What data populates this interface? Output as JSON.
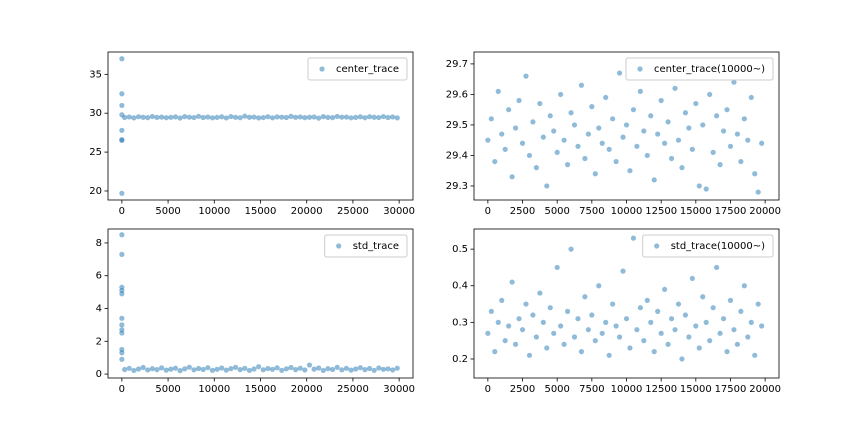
{
  "chart_data": [
    {
      "type": "scatter",
      "legend": "upper right",
      "x": [
        0,
        0,
        0,
        0,
        0,
        0,
        0,
        0,
        300,
        800,
        1300,
        1800,
        2300,
        2800,
        3300,
        3800,
        4300,
        4800,
        5300,
        5800,
        6300,
        6800,
        7300,
        7800,
        8300,
        8800,
        9300,
        9800,
        10300,
        10800,
        11300,
        11800,
        12300,
        12800,
        13300,
        13800,
        14300,
        14800,
        15300,
        15800,
        16300,
        16800,
        17300,
        17800,
        18300,
        18800,
        19300,
        19800,
        20300,
        20800,
        21300,
        21800,
        22300,
        22800,
        23300,
        23800,
        24300,
        24800,
        25300,
        25800,
        26300,
        26800,
        27300,
        27800,
        28300,
        28800,
        29300,
        29800
      ],
      "series": [
        {
          "name": "center_trace",
          "color": "#1f77b4",
          "values": [
            37.0,
            32.5,
            31.0,
            29.8,
            27.8,
            26.6,
            26.5,
            19.7,
            29.45,
            29.52,
            29.4,
            29.55,
            29.48,
            29.43,
            29.58,
            29.46,
            29.5,
            29.42,
            29.47,
            29.53,
            29.38,
            29.56,
            29.49,
            29.44,
            29.6,
            29.45,
            29.51,
            29.41,
            29.46,
            29.54,
            29.39,
            29.57,
            29.47,
            29.42,
            29.62,
            29.48,
            29.5,
            29.4,
            29.44,
            29.55,
            29.41,
            29.53,
            29.49,
            29.45,
            29.59,
            29.47,
            29.52,
            29.43,
            29.48,
            29.51,
            29.37,
            29.56,
            29.46,
            29.43,
            29.58,
            29.49,
            29.5,
            29.41,
            29.46,
            29.54,
            29.42,
            29.55,
            29.48,
            29.44,
            29.57,
            29.45,
            29.52,
            29.4
          ]
        }
      ],
      "xlim": [
        -1500,
        31500
      ],
      "ylim": [
        18.84,
        37.87
      ],
      "xticks": [
        0,
        5000,
        10000,
        15000,
        20000,
        25000,
        30000
      ],
      "yticks": [
        20,
        25,
        30,
        35
      ]
    },
    {
      "type": "scatter",
      "legend": "upper right",
      "x": [
        0,
        250,
        500,
        750,
        1000,
        1250,
        1500,
        1750,
        2000,
        2250,
        2500,
        2750,
        3000,
        3250,
        3500,
        3750,
        4000,
        4250,
        4500,
        4750,
        5000,
        5250,
        5500,
        5750,
        6000,
        6250,
        6500,
        6750,
        7000,
        7250,
        7500,
        7750,
        8000,
        8250,
        8500,
        8750,
        9000,
        9250,
        9500,
        9750,
        10000,
        10250,
        10500,
        10750,
        11000,
        11250,
        11500,
        11750,
        12000,
        12250,
        12500,
        12750,
        13000,
        13250,
        13500,
        13750,
        14000,
        14250,
        14500,
        14750,
        15000,
        15250,
        15500,
        15750,
        16000,
        16250,
        16500,
        16750,
        17000,
        17250,
        17500,
        17750,
        18000,
        18250,
        18500,
        18750,
        19000,
        19250,
        19500,
        19750
      ],
      "series": [
        {
          "name": "center_trace(10000~)",
          "color": "#1f77b4",
          "values": [
            29.45,
            29.52,
            29.38,
            29.61,
            29.47,
            29.42,
            29.55,
            29.33,
            29.49,
            29.58,
            29.44,
            29.66,
            29.4,
            29.51,
            29.36,
            29.57,
            29.46,
            29.3,
            29.53,
            29.48,
            29.41,
            29.6,
            29.45,
            29.37,
            29.54,
            29.5,
            29.43,
            29.63,
            29.39,
            29.47,
            29.56,
            29.34,
            29.49,
            29.44,
            29.59,
            29.42,
            29.52,
            29.38,
            29.67,
            29.46,
            29.5,
            29.35,
            29.55,
            29.43,
            29.61,
            29.48,
            29.4,
            29.53,
            29.32,
            29.47,
            29.58,
            29.44,
            29.51,
            29.39,
            29.62,
            29.45,
            29.36,
            29.54,
            29.49,
            29.42,
            29.57,
            29.3,
            29.5,
            29.29,
            29.6,
            29.41,
            29.53,
            29.37,
            29.48,
            29.55,
            29.43,
            29.64,
            29.47,
            29.38,
            29.52,
            29.45,
            29.59,
            29.34,
            29.28,
            29.44
          ]
        }
      ],
      "xlim": [
        -1000,
        21000
      ],
      "ylim": [
        29.254,
        29.739
      ],
      "xticks": [
        0,
        2500,
        5000,
        7500,
        10000,
        12500,
        15000,
        17500,
        20000
      ],
      "yticks": [
        29.3,
        29.4,
        29.5,
        29.6,
        29.7
      ]
    },
    {
      "type": "scatter",
      "legend": "upper right",
      "x": [
        0,
        0,
        0,
        0,
        0,
        0,
        0,
        0,
        0,
        0,
        0,
        0,
        300,
        800,
        1300,
        1800,
        2300,
        2800,
        3300,
        3800,
        4300,
        4800,
        5300,
        5800,
        6300,
        6800,
        7300,
        7800,
        8300,
        8800,
        9300,
        9800,
        10300,
        10800,
        11300,
        11800,
        12300,
        12800,
        13300,
        13800,
        14300,
        14800,
        15300,
        15800,
        16300,
        16800,
        17300,
        17800,
        18300,
        18800,
        19300,
        19800,
        20300,
        20800,
        21300,
        21800,
        22300,
        22800,
        23300,
        23800,
        24300,
        24800,
        25300,
        25800,
        26300,
        26800,
        27300,
        27800,
        28300,
        28800,
        29300,
        29800
      ],
      "series": [
        {
          "name": "std_trace",
          "color": "#1f77b4",
          "values": [
            8.5,
            7.3,
            5.3,
            5.1,
            4.9,
            3.4,
            3.0,
            2.7,
            2.5,
            1.5,
            1.3,
            0.9,
            0.28,
            0.35,
            0.22,
            0.31,
            0.4,
            0.25,
            0.33,
            0.27,
            0.38,
            0.24,
            0.3,
            0.36,
            0.21,
            0.32,
            0.42,
            0.26,
            0.34,
            0.28,
            0.39,
            0.23,
            0.29,
            0.37,
            0.24,
            0.33,
            0.41,
            0.27,
            0.35,
            0.22,
            0.31,
            0.45,
            0.26,
            0.34,
            0.29,
            0.38,
            0.23,
            0.32,
            0.4,
            0.27,
            0.36,
            0.25,
            0.55,
            0.3,
            0.37,
            0.22,
            0.33,
            0.28,
            0.41,
            0.26,
            0.35,
            0.24,
            0.31,
            0.39,
            0.27,
            0.34,
            0.23,
            0.37,
            0.29,
            0.32,
            0.25,
            0.36
          ]
        }
      ],
      "xlim": [
        -1500,
        31500
      ],
      "ylim": [
        -0.24,
        8.85
      ],
      "xticks": [
        0,
        5000,
        10000,
        15000,
        20000,
        25000,
        30000
      ],
      "yticks": [
        0,
        2,
        4,
        6,
        8
      ]
    },
    {
      "type": "scatter",
      "legend": "upper right",
      "x": [
        0,
        250,
        500,
        750,
        1000,
        1250,
        1500,
        1750,
        2000,
        2250,
        2500,
        2750,
        3000,
        3250,
        3500,
        3750,
        4000,
        4250,
        4500,
        4750,
        5000,
        5250,
        5500,
        5750,
        6000,
        6250,
        6500,
        6750,
        7000,
        7250,
        7500,
        7750,
        8000,
        8250,
        8500,
        8750,
        9000,
        9250,
        9500,
        9750,
        10000,
        10250,
        10500,
        10750,
        11000,
        11250,
        11500,
        11750,
        12000,
        12250,
        12500,
        12750,
        13000,
        13250,
        13500,
        13750,
        14000,
        14250,
        14500,
        14750,
        15000,
        15250,
        15500,
        15750,
        16000,
        16250,
        16500,
        16750,
        17000,
        17250,
        17500,
        17750,
        18000,
        18250,
        18500,
        18750,
        19000,
        19250,
        19500,
        19750
      ],
      "series": [
        {
          "name": "std_trace(10000~)",
          "color": "#1f77b4",
          "values": [
            0.27,
            0.33,
            0.22,
            0.3,
            0.36,
            0.25,
            0.29,
            0.41,
            0.24,
            0.31,
            0.28,
            0.35,
            0.21,
            0.32,
            0.26,
            0.38,
            0.3,
            0.23,
            0.34,
            0.27,
            0.45,
            0.29,
            0.24,
            0.33,
            0.5,
            0.26,
            0.31,
            0.22,
            0.37,
            0.28,
            0.32,
            0.25,
            0.4,
            0.27,
            0.3,
            0.21,
            0.35,
            0.29,
            0.26,
            0.44,
            0.31,
            0.23,
            0.53,
            0.28,
            0.34,
            0.25,
            0.36,
            0.3,
            0.22,
            0.33,
            0.27,
            0.39,
            0.24,
            0.31,
            0.28,
            0.35,
            0.2,
            0.32,
            0.26,
            0.42,
            0.29,
            0.23,
            0.37,
            0.3,
            0.25,
            0.34,
            0.45,
            0.27,
            0.31,
            0.22,
            0.36,
            0.28,
            0.24,
            0.33,
            0.4,
            0.26,
            0.3,
            0.21,
            0.35,
            0.29
          ]
        }
      ],
      "xlim": [
        -1000,
        21000
      ],
      "ylim": [
        0.148,
        0.555
      ],
      "xticks": [
        0,
        2500,
        5000,
        7500,
        10000,
        12500,
        15000,
        17500,
        20000
      ],
      "yticks": [
        0.2,
        0.3,
        0.4,
        0.5
      ]
    }
  ]
}
